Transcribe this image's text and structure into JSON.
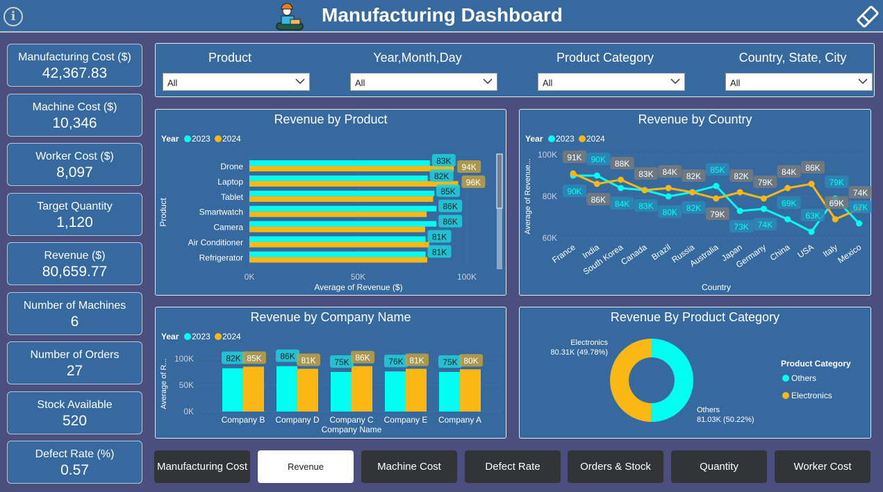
{
  "header": {
    "title": "Manufacturing Dashboard",
    "icons": [
      "info-icon",
      "worker-icon",
      "eraser-icon"
    ]
  },
  "kpis": [
    {
      "label": "Manufacturing Cost ($)",
      "value": "42,367.83"
    },
    {
      "label": "Machine Cost ($)",
      "value": "10,346"
    },
    {
      "label": "Worker Cost ($)",
      "value": "8,097"
    },
    {
      "label": "Target Quantity",
      "value": "1,120"
    },
    {
      "label": "Revenue ($)",
      "value": "80,659.77"
    },
    {
      "label": "Number of Machines",
      "value": "6"
    },
    {
      "label": "Number of Orders",
      "value": "27"
    },
    {
      "label": "Stock Available",
      "value": "520"
    },
    {
      "label": "Defect Rate (%)",
      "value": "0.57"
    }
  ],
  "filters": [
    {
      "label": "Product",
      "value": "All"
    },
    {
      "label": "Year,Month,Day",
      "value": "All"
    },
    {
      "label": "Product Category",
      "value": "All"
    },
    {
      "label": "Country, State, City",
      "value": "All"
    }
  ],
  "colors": {
    "2023": "#00ffee",
    "2024": "#fbb714",
    "panel": "#366a9f",
    "background": "#4b4f80"
  },
  "legend": {
    "title": "Year",
    "s1": "2023",
    "s2": "2024"
  },
  "chart_data": [
    {
      "type": "bar",
      "orientation": "horizontal",
      "title": "Revenue by Product",
      "xlabel": "Average of Revenue ($)",
      "ylabel": "Product",
      "xlim": [
        0,
        100000
      ],
      "ticks": [
        "0K",
        "50K",
        "100K"
      ],
      "categories": [
        "Drone",
        "Laptop",
        "Tablet",
        "Smartwatch",
        "Camera",
        "Air Conditioner",
        "Refrigerator"
      ],
      "series": [
        {
          "name": "2023",
          "values": [
            83000,
            82000,
            85000,
            86000,
            86000,
            81000,
            81000
          ],
          "labels": [
            "83K",
            "82K",
            "85K",
            "86K",
            "86K",
            "81K",
            "81K"
          ]
        },
        {
          "name": "2024",
          "values": [
            94000,
            96000,
            84500,
            81500,
            80800,
            82700,
            81800
          ],
          "labels": [
            "94K",
            "96K",
            "",
            "",
            "",
            "",
            ""
          ]
        }
      ]
    },
    {
      "type": "line",
      "title": "Revenue by Country",
      "xlabel": "Country",
      "ylabel": "Average of Revenue...",
      "ylim": [
        60000,
        100000
      ],
      "ticks": [
        "60K",
        "80K",
        "100K"
      ],
      "categories": [
        "France",
        "India",
        "South Korea",
        "Canada",
        "Brazil",
        "Russia",
        "Australia",
        "Japan",
        "Germany",
        "China",
        "USA",
        "Italy",
        "Mexico"
      ],
      "series": [
        {
          "name": "2023",
          "values": [
            90000,
            90000,
            84000,
            83000,
            80000,
            82000,
            85000,
            73000,
            74000,
            69000,
            63000,
            79000,
            67000
          ],
          "labels": [
            "90K",
            "90K",
            "84K",
            "83K",
            "80K",
            "82K",
            "85K",
            "73K",
            "74K",
            "69K",
            "63K",
            "79K",
            "67K"
          ]
        },
        {
          "name": "2024",
          "values": [
            91000,
            86000,
            88000,
            83000,
            84000,
            82000,
            79000,
            82000,
            79000,
            84000,
            86000,
            69000,
            74000
          ],
          "labels": [
            "91K",
            "86K",
            "88K",
            "83K",
            "84K",
            "82K",
            "79K",
            "82K",
            "79K",
            "84K",
            "86K",
            "69K",
            "74K"
          ]
        }
      ]
    },
    {
      "type": "bar",
      "title": "Revenue by Company Name",
      "xlabel": "Company Name",
      "ylabel": "Average of R...",
      "ylim": [
        0,
        100000
      ],
      "ticks": [
        "0K",
        "50K",
        "100K"
      ],
      "categories": [
        "Company B",
        "Company D",
        "Company C",
        "Company E",
        "Company A"
      ],
      "series": [
        {
          "name": "2023",
          "values": [
            82000,
            86000,
            75000,
            76000,
            75000
          ],
          "labels": [
            "82K",
            "86K",
            "75K",
            "76K",
            "75K"
          ]
        },
        {
          "name": "2024",
          "values": [
            85000,
            81000,
            86000,
            81000,
            80000
          ],
          "labels": [
            "85K",
            "81K",
            "86K",
            "81K",
            "80K"
          ]
        }
      ]
    },
    {
      "type": "pie",
      "donut": true,
      "title": "Revenue By Product Category",
      "legend_title": "Product Category",
      "categories": [
        "Others",
        "Electronics"
      ],
      "values": [
        81030,
        80310
      ],
      "labels": [
        "Others\n81.03K (50.22%)",
        "Electronics\n80.31K (49.78%)"
      ],
      "colors": [
        "#00ffee",
        "#fbb714"
      ]
    }
  ],
  "nav_buttons": [
    {
      "label": "Manufacturing Cost"
    },
    {
      "label": "Revenue",
      "active": true
    },
    {
      "label": "Machine Cost"
    },
    {
      "label": "Defect Rate"
    },
    {
      "label": "Orders & Stock"
    },
    {
      "label": "Quantity"
    },
    {
      "label": "Worker Cost"
    }
  ]
}
